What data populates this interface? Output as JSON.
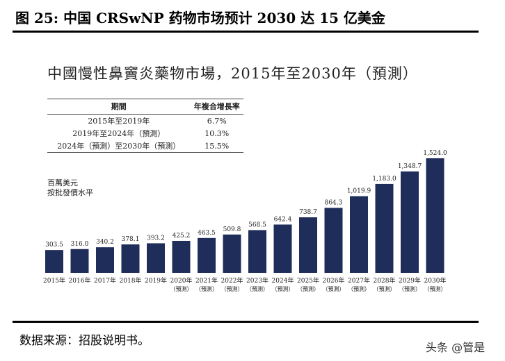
{
  "figure_title": "图 25: 中国 CRSwNP 药物市场预计 2030 达 15 亿美金",
  "source": "数据来源：招股说明书。",
  "watermark": "头条 @管是",
  "chart_data": {
    "type": "bar",
    "title": "中國慢性鼻竇炎藥物市場，2015年至2030年（預測）",
    "unit_lines": [
      "百萬美元",
      "按批發價水平"
    ],
    "color": "#1f2d5a",
    "categories": [
      [
        "2015年",
        ""
      ],
      [
        "2016年",
        ""
      ],
      [
        "2017年",
        ""
      ],
      [
        "2018年",
        ""
      ],
      [
        "2019年",
        ""
      ],
      [
        "2020年",
        "（預測）"
      ],
      [
        "2021年",
        "（預測）"
      ],
      [
        "2022年",
        "（預測）"
      ],
      [
        "2023年",
        "（預測）"
      ],
      [
        "2024年",
        "（預測）"
      ],
      [
        "2025年",
        "（預測）"
      ],
      [
        "2026年",
        "（預測）"
      ],
      [
        "2027年",
        "（預測）"
      ],
      [
        "2028年",
        "（預測）"
      ],
      [
        "2029年",
        "（預測）"
      ],
      [
        "2030年",
        "（預測）"
      ]
    ],
    "values": [
      303.5,
      316.0,
      340.2,
      378.1,
      393.2,
      425.2,
      463.5,
      509.8,
      568.5,
      642.4,
      738.7,
      864.3,
      1019.9,
      1183.0,
      1348.7,
      1524.0
    ],
    "value_labels": [
      "303.5",
      "316.0",
      "340.2",
      "378.1",
      "393.2",
      "425.2",
      "463.5",
      "509.8",
      "568.5",
      "642.4",
      "738.7",
      "864.3",
      "1,019.9",
      "1,183.0",
      "1,348.7",
      "1,524.0"
    ],
    "ylim": [
      0,
      1524.0
    ],
    "table": {
      "headers": [
        "期間",
        "年複合增長率"
      ],
      "rows": [
        [
          "2015年至2019年",
          "6.7%"
        ],
        [
          "2019年至2024年（預測）",
          "10.3%"
        ],
        [
          "2024年（預測）至2030年（預測）",
          "15.5%"
        ]
      ]
    }
  }
}
